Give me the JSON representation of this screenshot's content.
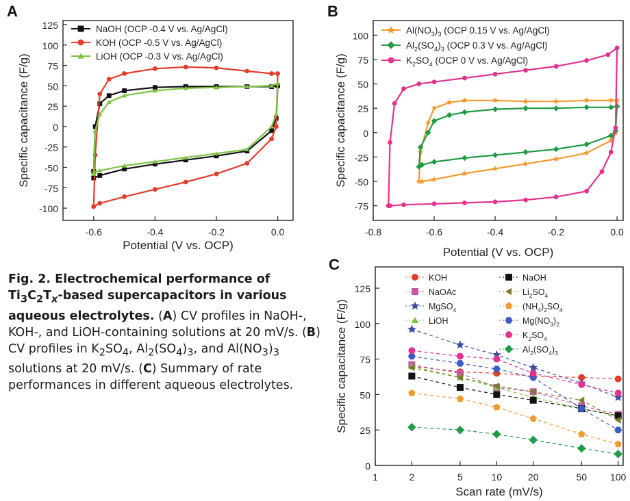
{
  "panel_letters": {
    "a": "A",
    "b": "B",
    "c": "C"
  },
  "caption": {
    "lead_prefix": "Fig. 2. Electrochemical performance of Ti",
    "lead_sub1": "3",
    "lead_c": "C",
    "lead_sub2": "2",
    "lead_t": "T",
    "lead_subx": "x",
    "lead_suffix": "-based supercapacitors in various aqueous electrolytes.",
    "a_open": "(",
    "a_letter": "A",
    "a_text": ") CV profiles in NaOH-, KOH-, and LiOH-containing solutions at 20 mV/s. (",
    "b_letter": "B",
    "b_text1": ") CV profiles in K",
    "b_sub1": "2",
    "b_text2": "SO",
    "b_sub2": "4",
    "b_text3": ", Al",
    "b_sub3": "2",
    "b_text4": "(SO",
    "b_sub4": "4",
    "b_text5": ")",
    "b_sub5": "3",
    "b_text6": ", and Al(NO",
    "b_sub6": "3",
    "b_text7": ")",
    "b_sub7": "3",
    "b_text8": " solutions at 20 mV/s. (",
    "c_letter": "C",
    "c_text": ") Summary of rate performances in different aqueous electrolytes."
  },
  "chart_data": [
    {
      "type": "line",
      "panel": "A",
      "xlabel": "Potential (V vs. OCP)",
      "ylabel": "Specific capacitance (F/g)",
      "xlim": [
        -0.7,
        0.05
      ],
      "ylim": [
        -115,
        130
      ],
      "xticks": [
        -0.6,
        -0.4,
        -0.2,
        0.0
      ],
      "xtick_labels": [
        "-0.6",
        "-0.4",
        "-0.2",
        "0.0"
      ],
      "yticks": [
        -100,
        -75,
        -50,
        -25,
        0,
        25,
        50,
        75,
        100,
        125
      ],
      "ytick_labels": [
        "-100",
        "-75",
        "-50",
        "-25",
        "0",
        "25",
        "50",
        "75",
        "100",
        "125"
      ],
      "legend_position": "top-left",
      "series": [
        {
          "name": "NaOH (OCP -0.4 V vs. Ag/AgCl)",
          "color": "#111111",
          "marker": "square",
          "x": [
            -0.6,
            -0.595,
            -0.58,
            -0.55,
            -0.5,
            -0.4,
            -0.3,
            -0.2,
            -0.1,
            -0.02,
            0.0,
            -0.005,
            -0.02,
            -0.1,
            -0.2,
            -0.3,
            -0.4,
            -0.5,
            -0.58,
            -0.6,
            -0.6
          ],
          "y": [
            -55,
            0,
            28,
            38,
            44,
            48,
            49,
            49,
            49,
            49,
            50,
            10,
            -5,
            -30,
            -36,
            -41,
            -46,
            -52,
            -60,
            -63,
            -55
          ]
        },
        {
          "name": "KOH (OCP -0.5 V vs. Ag/AgCl)",
          "color": "#e23c2b",
          "marker": "circle",
          "x": [
            -0.6,
            -0.595,
            -0.58,
            -0.55,
            -0.5,
            -0.4,
            -0.3,
            -0.2,
            -0.1,
            -0.02,
            0.0,
            -0.005,
            -0.02,
            -0.1,
            -0.2,
            -0.3,
            -0.4,
            -0.5,
            -0.58,
            -0.6,
            -0.6
          ],
          "y": [
            -98,
            -35,
            40,
            58,
            65,
            71,
            73,
            72,
            68,
            65,
            65,
            0,
            -15,
            -45,
            -58,
            -68,
            -77,
            -86,
            -94,
            -98,
            -98
          ]
        },
        {
          "name": "LiOH (OCP -0.3 V vs. Ag/AgCl)",
          "color": "#7cc442",
          "marker": "triangle",
          "x": [
            -0.6,
            -0.595,
            -0.58,
            -0.55,
            -0.5,
            -0.4,
            -0.3,
            -0.2,
            -0.1,
            -0.02,
            0.0,
            -0.005,
            -0.02,
            -0.1,
            -0.2,
            -0.3,
            -0.4,
            -0.5,
            -0.58,
            -0.6,
            -0.6
          ],
          "y": [
            -58,
            -5,
            15,
            30,
            38,
            44,
            47,
            48,
            49,
            50,
            53,
            15,
            0,
            -28,
            -33,
            -38,
            -43,
            -48,
            -54,
            -56,
            -58
          ]
        }
      ]
    },
    {
      "type": "line",
      "panel": "B",
      "xlabel": "Potential (V vs. OCP)",
      "ylabel": "Specific capacitance (F/g)",
      "xlim": [
        -0.8,
        0.02
      ],
      "ylim": [
        -90,
        115
      ],
      "xticks": [
        -0.8,
        -0.6,
        -0.4,
        -0.2,
        0.0
      ],
      "xtick_labels": [
        "-0.8",
        "-0.6",
        "-0.4",
        "-0.2",
        "0.0"
      ],
      "yticks": [
        -75,
        -50,
        -25,
        0,
        25,
        50,
        75,
        100
      ],
      "ytick_labels": [
        "-75",
        "-50",
        "-25",
        "0",
        "25",
        "50",
        "75",
        "100"
      ],
      "legend_position": "top-left",
      "series": [
        {
          "name_parts": [
            [
              "Al(NO",
              "n"
            ],
            [
              "3",
              "sub"
            ],
            [
              ")",
              "n"
            ],
            [
              "3",
              "sub"
            ],
            [
              " (OCP 0.15 V vs. Ag/AgCl)",
              "n"
            ]
          ],
          "color": "#f39a2e",
          "marker": "star",
          "x": [
            -0.65,
            -0.645,
            -0.62,
            -0.6,
            -0.55,
            -0.5,
            -0.4,
            -0.3,
            -0.2,
            -0.1,
            -0.02,
            0.0,
            -0.005,
            -0.02,
            -0.1,
            -0.2,
            -0.3,
            -0.4,
            -0.5,
            -0.6,
            -0.64,
            -0.65
          ],
          "y": [
            -50,
            -20,
            10,
            25,
            31,
            33,
            33,
            32,
            32,
            33,
            33,
            33,
            0,
            -8,
            -21,
            -27,
            -32,
            -37,
            -42,
            -48,
            -50,
            -50
          ]
        },
        {
          "name_parts": [
            [
              "Al",
              "n"
            ],
            [
              "2",
              "sub"
            ],
            [
              "(SO",
              "n"
            ],
            [
              "4",
              "sub"
            ],
            [
              ")",
              "n"
            ],
            [
              "3",
              "sub"
            ],
            [
              " (OCP 0.3 V vs. Ag/AgCl)",
              "n"
            ]
          ],
          "color": "#1f9a45",
          "marker": "diamond",
          "x": [
            -0.65,
            -0.645,
            -0.62,
            -0.6,
            -0.55,
            -0.5,
            -0.4,
            -0.3,
            -0.2,
            -0.1,
            -0.02,
            0.0,
            -0.005,
            -0.02,
            -0.1,
            -0.2,
            -0.3,
            -0.4,
            -0.5,
            -0.6,
            -0.64,
            -0.65
          ],
          "y": [
            -35,
            -15,
            0,
            12,
            18,
            21,
            24,
            25,
            25,
            26,
            26,
            27,
            2,
            -3,
            -12,
            -17,
            -20,
            -23,
            -26,
            -30,
            -33,
            -35
          ]
        },
        {
          "name_parts": [
            [
              "K",
              "n"
            ],
            [
              "2",
              "sub"
            ],
            [
              "SO",
              "n"
            ],
            [
              "4",
              "sub"
            ],
            [
              " (OCP 0 V vs. Ag/AgCl)",
              "n"
            ]
          ],
          "color": "#e2318f",
          "marker": "circle",
          "x": [
            -0.75,
            -0.745,
            -0.73,
            -0.7,
            -0.65,
            -0.6,
            -0.5,
            -0.4,
            -0.3,
            -0.2,
            -0.1,
            -0.03,
            0.0,
            -0.005,
            -0.02,
            -0.05,
            -0.1,
            -0.2,
            -0.3,
            -0.4,
            -0.5,
            -0.6,
            -0.7,
            -0.745,
            -0.75
          ],
          "y": [
            -75,
            -10,
            30,
            45,
            50,
            52,
            56,
            60,
            64,
            68,
            74,
            80,
            87,
            5,
            -20,
            -40,
            -60,
            -66,
            -69,
            -71,
            -72,
            -73,
            -74,
            -75,
            -75
          ]
        }
      ]
    },
    {
      "type": "line",
      "panel": "C",
      "xlabel": "Scan rate (mV/s)",
      "ylabel": "Specific capacitance (F/g)",
      "xscale": "log",
      "xlim": [
        1,
        110
      ],
      "ylim": [
        0,
        140
      ],
      "xticks": [
        1,
        2,
        5,
        10,
        20,
        50,
        100
      ],
      "xtick_labels": [
        "1",
        "2",
        "5",
        "10",
        "20",
        "50",
        "100"
      ],
      "yticks": [
        0,
        25,
        50,
        75,
        100,
        125
      ],
      "ytick_labels": [
        "0",
        "25",
        "50",
        "75",
        "100",
        "125"
      ],
      "x": [
        2,
        5,
        10,
        20,
        50,
        100
      ],
      "legend_position": "top",
      "series": [
        {
          "name_parts": [
            [
              "KOH",
              "n"
            ]
          ],
          "color": "#e23c2b",
          "marker": "circle",
          "values": [
            70,
            66,
            65,
            63,
            62,
            61
          ]
        },
        {
          "name_parts": [
            [
              "NaOAc",
              "n"
            ]
          ],
          "color": "#c65a9f",
          "marker": "square",
          "values": [
            71,
            65,
            55,
            52,
            42,
            36
          ]
        },
        {
          "name_parts": [
            [
              "MgSO",
              "n"
            ],
            [
              "4",
              "sub"
            ]
          ],
          "color": "#3c4fa0",
          "marker": "star",
          "values": [
            96,
            85,
            78,
            69,
            58,
            48
          ]
        },
        {
          "name_parts": [
            [
              "LiOH",
              "n"
            ]
          ],
          "color": "#7cc442",
          "marker": "triangle",
          "values": [
            70,
            62,
            55,
            48,
            40,
            35
          ]
        },
        {
          "name_parts": [
            [
              "NaOH",
              "n"
            ]
          ],
          "color": "#111111",
          "marker": "square",
          "values": [
            63,
            55,
            50,
            46,
            40,
            35
          ]
        },
        {
          "name_parts": [
            [
              "Li",
              "n"
            ],
            [
              "2",
              "sub"
            ],
            [
              "SO",
              "n"
            ],
            [
              "4",
              "sub"
            ]
          ],
          "color": "#7f7a2b",
          "marker": "triangle-left",
          "values": [
            69,
            62,
            56,
            52,
            46,
            32
          ]
        },
        {
          "name_parts": [
            [
              "(NH",
              "n"
            ],
            [
              "4",
              "sub"
            ],
            [
              ")",
              "n"
            ],
            [
              "2",
              "sub"
            ],
            [
              "SO",
              "n"
            ],
            [
              "4",
              "sub"
            ]
          ],
          "color": "#f39a2e",
          "marker": "pentagon",
          "values": [
            51,
            47,
            41,
            33,
            22,
            15
          ]
        },
        {
          "name_parts": [
            [
              "Mg(NO",
              "n"
            ],
            [
              "3",
              "sub"
            ],
            [
              ")",
              "n"
            ],
            [
              "2",
              "sub"
            ]
          ],
          "color": "#3b5cc8",
          "marker": "hexagon",
          "values": [
            77,
            72,
            68,
            62,
            40,
            25
          ]
        },
        {
          "name_parts": [
            [
              "K",
              "n"
            ],
            [
              "2",
              "sub"
            ],
            [
              "SO",
              "n"
            ],
            [
              "4",
              "sub"
            ]
          ],
          "color": "#e2318f",
          "marker": "circle",
          "values": [
            81,
            77,
            75,
            65,
            57,
            51
          ]
        },
        {
          "name_parts": [
            [
              "Al",
              "n"
            ],
            [
              "2",
              "sub"
            ],
            [
              "(SO",
              "n"
            ],
            [
              "4",
              "sub"
            ],
            [
              ")",
              "n"
            ],
            [
              "3",
              "sub"
            ]
          ],
          "color": "#1f9a45",
          "marker": "diamond",
          "values": [
            27,
            25,
            22,
            18,
            12,
            8
          ]
        }
      ]
    }
  ]
}
